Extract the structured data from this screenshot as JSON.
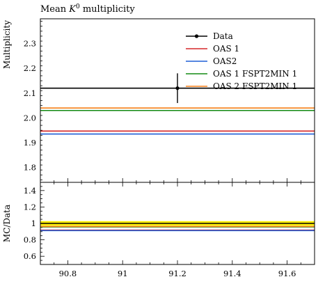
{
  "chart_data": [
    {
      "type": "line",
      "title_prefix": "Mean ",
      "title_symbol": "K",
      "title_superscript": "0",
      "title_suffix": " multiplicity",
      "ylabel": "Multiplicity",
      "xlim": [
        90.7,
        91.7
      ],
      "ylim": [
        1.74,
        2.4
      ],
      "y_ticks": [
        1.8,
        1.9,
        2.0,
        2.1,
        2.2,
        2.3
      ],
      "y_tick_labels": [
        "1.8",
        "1.9",
        "2.0",
        "2.1",
        "2.2",
        "2.3"
      ],
      "legend_position": "top-right",
      "data_point": {
        "name": "Data",
        "x": 91.2,
        "y": 2.12,
        "y_err_low": 0.06,
        "y_err_high": 0.06,
        "color": "#000000"
      },
      "series": [
        {
          "name": "OAS 1",
          "y": 1.947,
          "color": "#d62728"
        },
        {
          "name": "OAS2",
          "y": 1.935,
          "color": "#1f5fd6"
        },
        {
          "name": "OAS 1 FSPT2MIN 1",
          "y": 2.03,
          "color": "#138a13"
        },
        {
          "name": "OAS 2 FSPT2MIN 1",
          "y": 2.04,
          "color": "#f57f17"
        }
      ]
    },
    {
      "type": "line",
      "ylabel": "MC/Data",
      "xlim": [
        90.7,
        91.7
      ],
      "ylim": [
        0.5,
        1.5
      ],
      "y_ticks": [
        0.6,
        0.8,
        1.0,
        1.2,
        1.4
      ],
      "y_tick_labels": [
        "0.6",
        "0.8",
        "1",
        "1.2",
        "1.4"
      ],
      "x_ticks": [
        90.8,
        91.0,
        91.2,
        91.4,
        91.6
      ],
      "x_tick_labels": [
        "90.8",
        "91",
        "91.2",
        "91.4",
        "91.6"
      ],
      "error_band": {
        "low": 0.972,
        "high": 1.028,
        "color": "#ffee00"
      },
      "reference": {
        "y": 1.0,
        "color": "#000000"
      },
      "series": [
        {
          "name": "OAS 1",
          "y": 0.918,
          "color": "#d62728"
        },
        {
          "name": "OAS2",
          "y": 0.913,
          "color": "#1f5fd6"
        },
        {
          "name": "OAS 1 FSPT2MIN 1",
          "y": 0.957,
          "color": "#138a13"
        },
        {
          "name": "OAS 2 FSPT2MIN 1",
          "y": 0.962,
          "color": "#f57f17"
        }
      ]
    }
  ]
}
